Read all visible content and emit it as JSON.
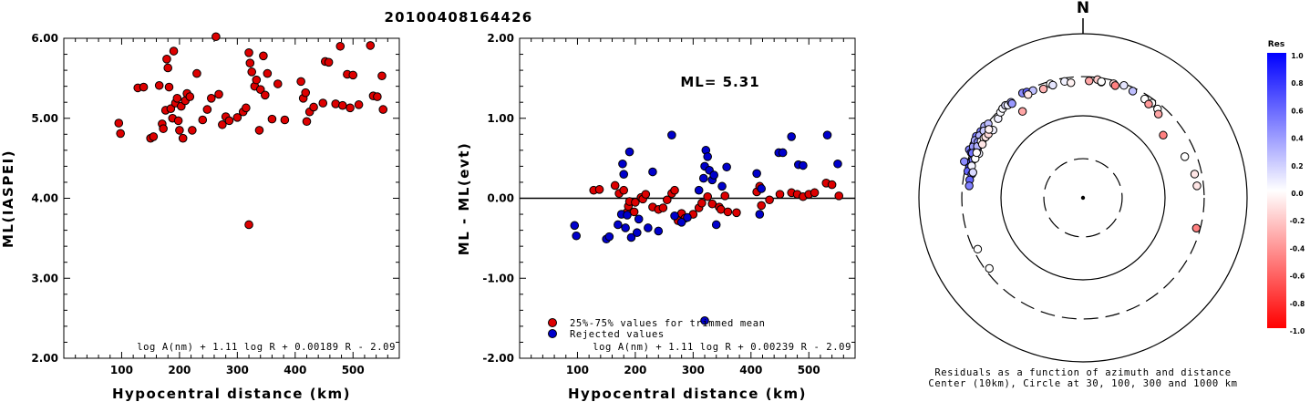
{
  "title": "20100408164426",
  "colors": {
    "red": "#dd0000",
    "blue": "#0000cc",
    "black": "#000000"
  },
  "chart_data": [
    {
      "type": "scatter",
      "ylabel": "ML(IASPEI)",
      "xlabel": "Hypocentral distance (km)",
      "xlim": [
        0,
        580
      ],
      "ylim": [
        2.0,
        6.0
      ],
      "xticks": [
        "100",
        "200",
        "300",
        "400",
        "500"
      ],
      "yticks": [
        "2.00",
        "3.00",
        "4.00",
        "5.00",
        "6.00"
      ],
      "formula": "log A(nm) + 1.11 log R + 0.00189 R - 2.09",
      "points": [
        [
          95,
          4.94
        ],
        [
          98,
          4.81
        ],
        [
          128,
          5.38
        ],
        [
          138,
          5.39
        ],
        [
          150,
          4.75
        ],
        [
          155,
          4.77
        ],
        [
          165,
          5.41
        ],
        [
          170,
          4.93
        ],
        [
          172,
          4.87
        ],
        [
          176,
          5.1
        ],
        [
          178,
          5.74
        ],
        [
          180,
          5.63
        ],
        [
          182,
          5.39
        ],
        [
          185,
          5.12
        ],
        [
          188,
          5.0
        ],
        [
          190,
          5.84
        ],
        [
          193,
          5.19
        ],
        [
          196,
          5.25
        ],
        [
          198,
          4.97
        ],
        [
          200,
          4.85
        ],
        [
          203,
          5.15
        ],
        [
          206,
          4.75
        ],
        [
          210,
          5.22
        ],
        [
          213,
          5.31
        ],
        [
          218,
          5.27
        ],
        [
          222,
          4.85
        ],
        [
          230,
          5.56
        ],
        [
          240,
          4.98
        ],
        [
          248,
          5.11
        ],
        [
          255,
          5.25
        ],
        [
          263,
          6.02
        ],
        [
          268,
          5.3
        ],
        [
          274,
          4.92
        ],
        [
          280,
          5.02
        ],
        [
          286,
          4.97
        ],
        [
          300,
          5.01
        ],
        [
          310,
          5.08
        ],
        [
          315,
          5.13
        ],
        [
          320,
          5.82
        ],
        [
          322,
          5.69
        ],
        [
          325,
          5.58
        ],
        [
          330,
          5.4
        ],
        [
          333,
          5.48
        ],
        [
          338,
          4.85
        ],
        [
          340,
          5.36
        ],
        [
          345,
          5.78
        ],
        [
          348,
          5.29
        ],
        [
          352,
          5.56
        ],
        [
          360,
          4.99
        ],
        [
          370,
          5.43
        ],
        [
          382,
          4.98
        ],
        [
          410,
          5.46
        ],
        [
          414,
          5.25
        ],
        [
          418,
          5.32
        ],
        [
          420,
          4.96
        ],
        [
          425,
          5.08
        ],
        [
          432,
          5.14
        ],
        [
          448,
          5.19
        ],
        [
          452,
          5.71
        ],
        [
          458,
          5.7
        ],
        [
          470,
          5.18
        ],
        [
          478,
          5.9
        ],
        [
          482,
          5.16
        ],
        [
          490,
          5.55
        ],
        [
          495,
          5.13
        ],
        [
          500,
          5.54
        ],
        [
          510,
          5.17
        ],
        [
          530,
          5.91
        ],
        [
          535,
          5.28
        ],
        [
          542,
          5.27
        ],
        [
          550,
          5.53
        ],
        [
          552,
          5.11
        ],
        [
          320,
          3.67
        ]
      ]
    },
    {
      "type": "scatter",
      "ylabel": "ML - ML(evt)",
      "xlabel": "Hypocentral distance (km)",
      "xlim": [
        0,
        580
      ],
      "ylim": [
        -2.0,
        2.0
      ],
      "xticks": [
        "100",
        "200",
        "300",
        "400",
        "500"
      ],
      "yticks": [
        "-2.00",
        "-1.00",
        "0.00",
        "1.00",
        "2.00"
      ],
      "annotation": "ML= 5.31",
      "formula": "log A(nm) + 1.11 log R + 0.00239 R - 2.09",
      "series": [
        {
          "name": "25%-75% values for trimmed mean",
          "color": "red",
          "points": [
            [
              128,
              0.1
            ],
            [
              138,
              0.11
            ],
            [
              165,
              0.16
            ],
            [
              172,
              0.06
            ],
            [
              180,
              0.1
            ],
            [
              185,
              -0.18
            ],
            [
              188,
              -0.1
            ],
            [
              190,
              -0.04
            ],
            [
              198,
              -0.17
            ],
            [
              200,
              -0.05
            ],
            [
              210,
              0.01
            ],
            [
              213,
              -0.01
            ],
            [
              218,
              0.05
            ],
            [
              230,
              -0.11
            ],
            [
              240,
              -0.14
            ],
            [
              248,
              -0.12
            ],
            [
              255,
              -0.02
            ],
            [
              263,
              0.06
            ],
            [
              268,
              0.1
            ],
            [
              274,
              -0.28
            ],
            [
              280,
              -0.19
            ],
            [
              286,
              -0.25
            ],
            [
              300,
              -0.2
            ],
            [
              310,
              -0.12
            ],
            [
              315,
              -0.06
            ],
            [
              325,
              0.02
            ],
            [
              333,
              -0.07
            ],
            [
              345,
              -0.11
            ],
            [
              348,
              -0.14
            ],
            [
              355,
              0.03
            ],
            [
              360,
              -0.17
            ],
            [
              375,
              -0.18
            ],
            [
              410,
              0.08
            ],
            [
              415,
              0.15
            ],
            [
              418,
              -0.09
            ],
            [
              432,
              -0.02
            ],
            [
              450,
              0.05
            ],
            [
              470,
              0.07
            ],
            [
              480,
              0.05
            ],
            [
              490,
              0.02
            ],
            [
              500,
              0.05
            ],
            [
              510,
              0.07
            ],
            [
              530,
              0.19
            ],
            [
              540,
              0.17
            ],
            [
              552,
              0.03
            ]
          ]
        },
        {
          "name": "Rejected values",
          "color": "blue",
          "points": [
            [
              95,
              -0.34
            ],
            [
              98,
              -0.47
            ],
            [
              150,
              -0.51
            ],
            [
              155,
              -0.48
            ],
            [
              170,
              -0.33
            ],
            [
              176,
              -0.2
            ],
            [
              178,
              0.43
            ],
            [
              180,
              0.3
            ],
            [
              183,
              -0.37
            ],
            [
              186,
              -0.21
            ],
            [
              190,
              0.58
            ],
            [
              193,
              -0.49
            ],
            [
              203,
              -0.43
            ],
            [
              206,
              -0.26
            ],
            [
              222,
              -0.37
            ],
            [
              230,
              0.33
            ],
            [
              240,
              -0.41
            ],
            [
              263,
              0.79
            ],
            [
              268,
              -0.22
            ],
            [
              280,
              -0.3
            ],
            [
              290,
              -0.24
            ],
            [
              310,
              0.1
            ],
            [
              318,
              0.25
            ],
            [
              320,
              0.4
            ],
            [
              322,
              0.6
            ],
            [
              325,
              0.52
            ],
            [
              328,
              0.35
            ],
            [
              333,
              0.23
            ],
            [
              336,
              0.29
            ],
            [
              340,
              -0.33
            ],
            [
              350,
              0.15
            ],
            [
              358,
              0.39
            ],
            [
              410,
              0.31
            ],
            [
              415,
              -0.2
            ],
            [
              418,
              0.12
            ],
            [
              448,
              0.57
            ],
            [
              455,
              0.57
            ],
            [
              470,
              0.77
            ],
            [
              482,
              0.42
            ],
            [
              490,
              0.41
            ],
            [
              532,
              0.79
            ],
            [
              550,
              0.43
            ],
            [
              320,
              -1.53
            ]
          ]
        }
      ]
    },
    {
      "type": "scatter",
      "subtype": "polar",
      "north_label": "N",
      "legend_title": "Res",
      "legend_ticks": [
        "1.0",
        "0.8",
        "0.6",
        "0.4",
        "0.2",
        "0.0",
        "-0.2",
        "-0.4",
        "-0.6",
        "-0.8",
        "-1.0"
      ],
      "caption_line1": "Residuals as a function of azimuth and distance",
      "caption_line2": "Center (10km), Circle at 30, 100, 300 and 1000 km",
      "circles_km": [
        30,
        100,
        300,
        1000
      ],
      "points": [
        [
          287,
          326,
          0.45
        ],
        [
          293,
          320,
          0.5
        ],
        [
          300,
          318,
          0.55
        ],
        [
          303,
          306,
          0.5
        ],
        [
          296,
          303,
          0.6
        ],
        [
          292,
          296,
          0.7
        ],
        [
          295,
          300,
          0.4
        ],
        [
          298,
          310,
          0.35
        ],
        [
          301,
          296,
          0.3
        ],
        [
          306,
          305,
          0.3
        ],
        [
          308,
          292,
          0.25
        ],
        [
          304,
          287,
          0.2
        ],
        [
          298,
          282,
          0.45
        ],
        [
          292,
          285,
          0.55
        ],
        [
          288,
          268,
          0.65
        ],
        [
          285,
          272,
          0.7
        ],
        [
          283,
          276,
          0.6
        ],
        [
          289,
          262,
          0.55
        ],
        [
          295,
          262,
          0.4
        ],
        [
          296,
          270,
          0.3
        ],
        [
          286,
          258,
          0.05
        ],
        [
          282,
          243,
          0.55
        ],
        [
          279,
          250,
          0.6
        ],
        [
          276,
          248,
          0.5
        ],
        [
          283,
          238,
          0.15
        ],
        [
          293,
          239,
          0.05
        ],
        [
          290,
          250,
          0.0
        ],
        [
          293,
          256,
          -0.02
        ],
        [
          299,
          263,
          0.0
        ],
        [
          301,
          257,
          -0.05
        ],
        [
          302,
          251,
          -0.1
        ],
        [
          298,
          245,
          -0.1
        ],
        [
          304,
          246,
          -0.15
        ],
        [
          307,
          236,
          0.05
        ],
        [
          306,
          262,
          -0.05
        ],
        [
          313,
          260,
          0.05
        ],
        [
          316,
          281,
          0.02
        ],
        [
          318,
          291,
          0.02
        ],
        [
          320,
          296,
          0.15
        ],
        [
          321,
          285,
          0.05
        ],
        [
          323,
          287,
          0.35
        ],
        [
          323,
          274,
          0.4
        ],
        [
          330,
          298,
          0.45
        ],
        [
          332,
          289,
          0.6
        ],
        [
          335,
          277,
          0.25
        ],
        [
          332,
          266,
          -0.1
        ],
        [
          344,
          279,
          0.0
        ],
        [
          345,
          264,
          0.1
        ],
        [
          340,
          258,
          -0.3
        ],
        [
          351,
          273,
          0.05
        ],
        [
          354,
          257,
          -0.05
        ],
        [
          3,
          267,
          -0.35
        ],
        [
          7,
          283,
          -0.2
        ],
        [
          9,
          268,
          0.15
        ],
        [
          9,
          272,
          0.0
        ],
        [
          15,
          275,
          -0.15
        ],
        [
          16,
          265,
          -0.5
        ],
        [
          20,
          287,
          0.1
        ],
        [
          25,
          272,
          0.25
        ],
        [
          32,
          263,
          0.0
        ],
        [
          36,
          268,
          0.0
        ],
        [
          35,
          248,
          -0.4
        ],
        [
          40,
          259,
          0.0
        ],
        [
          42,
          236,
          -0.35
        ],
        [
          52,
          174,
          -0.5
        ],
        [
          68,
          218,
          0.0
        ],
        [
          78,
          246,
          -0.1
        ],
        [
          84,
          249,
          -0.1
        ],
        [
          105,
          269,
          -0.5
        ],
        [
          325,
          193,
          -0.35
        ],
        [
          244,
          268,
          0.0
        ],
        [
          233,
          269,
          0.0
        ]
      ]
    }
  ]
}
